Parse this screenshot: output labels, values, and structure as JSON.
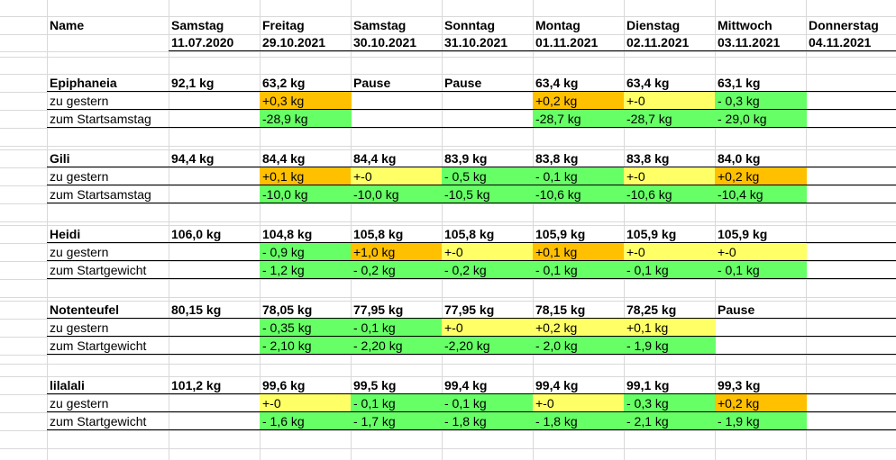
{
  "header": {
    "name_label": "Name",
    "days": [
      {
        "day": "Samstag",
        "date": "11.07.2020"
      },
      {
        "day": "Freitag",
        "date": "29.10.2021"
      },
      {
        "day": "Samstag",
        "date": "30.10.2021"
      },
      {
        "day": "Sonntag",
        "date": "31.10.2021"
      },
      {
        "day": "Montag",
        "date": "01.11.2021"
      },
      {
        "day": "Dienstag",
        "date": "02.11.2021"
      },
      {
        "day": "Mittwoch",
        "date": "03.11.2021"
      },
      {
        "day": "Donnerstag",
        "date": "04.11.2021"
      }
    ]
  },
  "colors": {
    "orange": "#ffc000",
    "yellow": "#ffff66",
    "green": "#66ff66",
    "gridline": "#d9d9d9"
  },
  "groups": [
    {
      "name": "Epiphaneia",
      "rows": [
        {
          "label": "",
          "cells": [
            {
              "v": "92,1 kg"
            },
            {
              "v": "63,2 kg"
            },
            {
              "v": "Pause"
            },
            {
              "v": "Pause"
            },
            {
              "v": "63,4 kg"
            },
            {
              "v": "63,4 kg"
            },
            {
              "v": "63,1 kg"
            },
            {
              "v": ""
            }
          ]
        },
        {
          "label": "zu gestern",
          "cells": [
            {
              "v": ""
            },
            {
              "v": "+0,3 kg",
              "c": "orange"
            },
            {
              "v": ""
            },
            {
              "v": ""
            },
            {
              "v": "+0,2 kg",
              "c": "orange"
            },
            {
              "v": "+-0",
              "c": "yellow"
            },
            {
              "v": "- 0,3 kg",
              "c": "green"
            },
            {
              "v": ""
            }
          ]
        },
        {
          "label": "zum Startsamstag",
          "cells": [
            {
              "v": ""
            },
            {
              "v": "-28,9 kg",
              "c": "green"
            },
            {
              "v": ""
            },
            {
              "v": ""
            },
            {
              "v": "-28,7 kg",
              "c": "green"
            },
            {
              "v": "-28,7 kg",
              "c": "green"
            },
            {
              "v": "- 29,0 kg",
              "c": "green"
            },
            {
              "v": ""
            }
          ]
        }
      ]
    },
    {
      "name": "Gili",
      "rows": [
        {
          "label": "",
          "cells": [
            {
              "v": "94,4 kg"
            },
            {
              "v": "84,4 kg"
            },
            {
              "v": "84,4 kg"
            },
            {
              "v": "83,9 kg"
            },
            {
              "v": "83,8 kg"
            },
            {
              "v": "83,8 kg"
            },
            {
              "v": "84,0 kg"
            },
            {
              "v": ""
            }
          ]
        },
        {
          "label": "zu gestern",
          "cells": [
            {
              "v": ""
            },
            {
              "v": "+0,1 kg",
              "c": "orange"
            },
            {
              "v": "+-0",
              "c": "yellow"
            },
            {
              "v": "- 0,5 kg",
              "c": "green"
            },
            {
              "v": "- 0,1 kg",
              "c": "green"
            },
            {
              "v": "+-0",
              "c": "yellow"
            },
            {
              "v": "+0,2 kg",
              "c": "orange"
            },
            {
              "v": ""
            }
          ]
        },
        {
          "label": "zum Startsamstag",
          "cells": [
            {
              "v": ""
            },
            {
              "v": "-10,0 kg",
              "c": "green"
            },
            {
              "v": "-10,0 kg",
              "c": "green"
            },
            {
              "v": "-10,5 kg",
              "c": "green"
            },
            {
              "v": "-10,6 kg",
              "c": "green"
            },
            {
              "v": "-10,6 kg",
              "c": "green"
            },
            {
              "v": "-10,4 kg",
              "c": "green"
            },
            {
              "v": ""
            }
          ]
        }
      ]
    },
    {
      "name": "Heidi",
      "rows": [
        {
          "label": "",
          "cells": [
            {
              "v": "106,0 kg"
            },
            {
              "v": "104,8 kg"
            },
            {
              "v": "105,8 kg"
            },
            {
              "v": "105,8 kg"
            },
            {
              "v": "105,9 kg"
            },
            {
              "v": "105,9 kg"
            },
            {
              "v": "105,9 kg"
            },
            {
              "v": ""
            }
          ]
        },
        {
          "label": "zu gestern",
          "cells": [
            {
              "v": ""
            },
            {
              "v": "- 0,9 kg",
              "c": "green"
            },
            {
              "v": "+1,0 kg",
              "c": "orange"
            },
            {
              "v": "+-0",
              "c": "yellow"
            },
            {
              "v": "+0,1 kg",
              "c": "orange"
            },
            {
              "v": "+-0",
              "c": "yellow"
            },
            {
              "v": "+-0",
              "c": "yellow"
            },
            {
              "v": ""
            }
          ]
        },
        {
          "label": "zum Startgewicht",
          "cells": [
            {
              "v": ""
            },
            {
              "v": "- 1,2 kg",
              "c": "green"
            },
            {
              "v": "- 0,2 kg",
              "c": "green"
            },
            {
              "v": "- 0,2 kg",
              "c": "green"
            },
            {
              "v": "- 0,1 kg",
              "c": "green"
            },
            {
              "v": "- 0,1 kg",
              "c": "green"
            },
            {
              "v": "- 0,1 kg",
              "c": "green"
            },
            {
              "v": ""
            }
          ]
        }
      ]
    },
    {
      "name": "Notenteufel",
      "rows": [
        {
          "label": "",
          "cells": [
            {
              "v": "80,15 kg"
            },
            {
              "v": "78,05 kg"
            },
            {
              "v": "77,95 kg"
            },
            {
              "v": "77,95 kg"
            },
            {
              "v": "78,15 kg"
            },
            {
              "v": "78,25 kg"
            },
            {
              "v": "Pause"
            },
            {
              "v": ""
            }
          ]
        },
        {
          "label": "zu gestern",
          "cells": [
            {
              "v": ""
            },
            {
              "v": "- 0,35 kg",
              "c": "green"
            },
            {
              "v": "- 0,1 kg",
              "c": "green"
            },
            {
              "v": "+-0",
              "c": "yellow"
            },
            {
              "v": "+0,2 kg",
              "c": "yellow"
            },
            {
              "v": "+0,1 kg",
              "c": "yellow"
            },
            {
              "v": ""
            },
            {
              "v": ""
            }
          ]
        },
        {
          "label": "zum Startgewicht",
          "cells": [
            {
              "v": ""
            },
            {
              "v": "- 2,10 kg",
              "c": "green"
            },
            {
              "v": "- 2,20 kg",
              "c": "green"
            },
            {
              "v": "-2,20 kg",
              "c": "green"
            },
            {
              "v": "- 2,0 kg",
              "c": "green"
            },
            {
              "v": "- 1,9 kg",
              "c": "green"
            },
            {
              "v": ""
            },
            {
              "v": ""
            }
          ]
        }
      ]
    },
    {
      "name": "lilalali",
      "rows": [
        {
          "label": "",
          "cells": [
            {
              "v": "101,2 kg"
            },
            {
              "v": "99,6 kg"
            },
            {
              "v": "99,5 kg"
            },
            {
              "v": "99,4 kg"
            },
            {
              "v": "99,4 kg"
            },
            {
              "v": "99,1 kg"
            },
            {
              "v": "99,3 kg"
            },
            {
              "v": ""
            }
          ]
        },
        {
          "label": "zu gestern",
          "cells": [
            {
              "v": ""
            },
            {
              "v": "+-0",
              "c": "yellow"
            },
            {
              "v": "- 0,1 kg",
              "c": "green"
            },
            {
              "v": "- 0,1 kg",
              "c": "green"
            },
            {
              "v": "+-0",
              "c": "yellow"
            },
            {
              "v": "- 0,3 kg",
              "c": "green"
            },
            {
              "v": "+0,2 kg",
              "c": "orange"
            },
            {
              "v": ""
            }
          ]
        },
        {
          "label": "zum Startgewicht",
          "cells": [
            {
              "v": ""
            },
            {
              "v": "- 1,6 kg",
              "c": "green"
            },
            {
              "v": "- 1,7 kg",
              "c": "green"
            },
            {
              "v": "- 1,8 kg",
              "c": "green"
            },
            {
              "v": "- 1,8 kg",
              "c": "green"
            },
            {
              "v": "- 2,1 kg",
              "c": "green"
            },
            {
              "v": "- 1,9 kg",
              "c": "green"
            },
            {
              "v": ""
            }
          ]
        }
      ]
    }
  ]
}
